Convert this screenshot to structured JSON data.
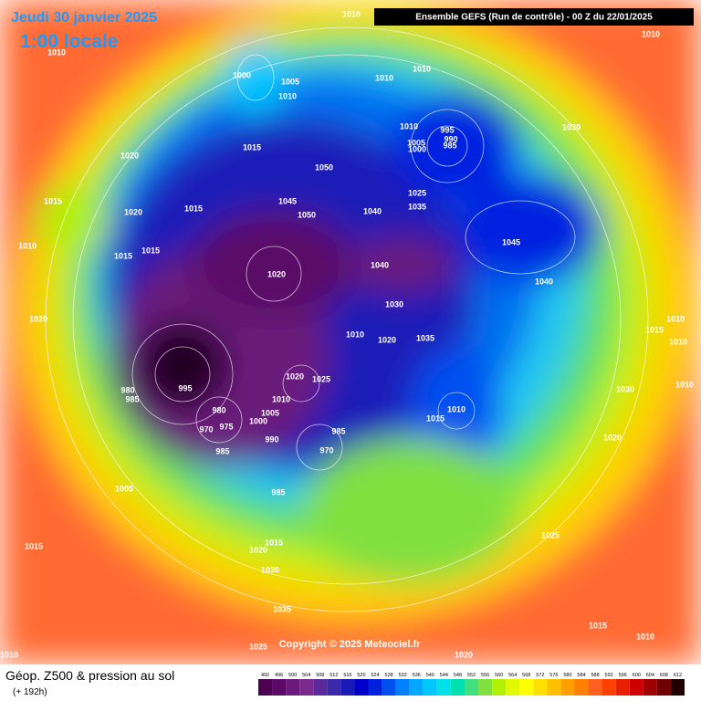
{
  "header": {
    "date": "Jeudi 30 janvier 2025",
    "time": "1:00 locale",
    "run": "Ensemble GEFS  (Run de contrôle)  -  00 Z du 22/01/2025"
  },
  "footer": {
    "title": "Géop. Z500 & pression au sol",
    "lead": "(+ 192h)",
    "copyright": "Copyright © 2025 Meteociel.fr"
  },
  "scale": {
    "values": [
      492,
      496,
      500,
      504,
      508,
      512,
      516,
      520,
      524,
      528,
      532,
      536,
      540,
      544,
      548,
      552,
      556,
      560,
      564,
      568,
      572,
      576,
      580,
      584,
      588,
      592,
      596,
      600,
      604,
      608,
      612
    ],
    "colors": [
      "#4b0050",
      "#5a0a66",
      "#6a1a7a",
      "#7a2a8c",
      "#5a2a9a",
      "#3a2aaa",
      "#1a1ab8",
      "#0000c8",
      "#0020e0",
      "#0050f0",
      "#0080ff",
      "#00a8ff",
      "#00c8ff",
      "#00e0e8",
      "#00e0b0",
      "#40e080",
      "#80e040",
      "#b0f000",
      "#e0f800",
      "#ffff00",
      "#ffe000",
      "#ffc000",
      "#ffa000",
      "#ff8000",
      "#ff6020",
      "#ff4000",
      "#e82000",
      "#d00000",
      "#a00000",
      "#700000",
      "#200000"
    ]
  },
  "isobar_labels": [
    1010,
    1010,
    1010,
    1000,
    1005,
    1010,
    1010,
    1010,
    1010,
    995,
    990,
    1005,
    985,
    1000,
    1030,
    1020,
    1015,
    1050,
    1025,
    1035,
    1015,
    1015,
    1020,
    1045,
    1050,
    1040,
    1010,
    1045,
    1015,
    1015,
    1020,
    1040,
    1040,
    1030,
    1020,
    1010,
    1020,
    1035,
    1015,
    1010,
    1010,
    1020,
    1025,
    980,
    985,
    995,
    980,
    1010,
    1005,
    970,
    975,
    1000,
    1010,
    1015,
    985,
    1030,
    1010,
    990,
    970,
    985,
    1020,
    1005,
    985,
    1015,
    1020,
    1015,
    1030,
    1025,
    1035,
    1015,
    1010,
    1025,
    1020,
    1010
  ]
}
